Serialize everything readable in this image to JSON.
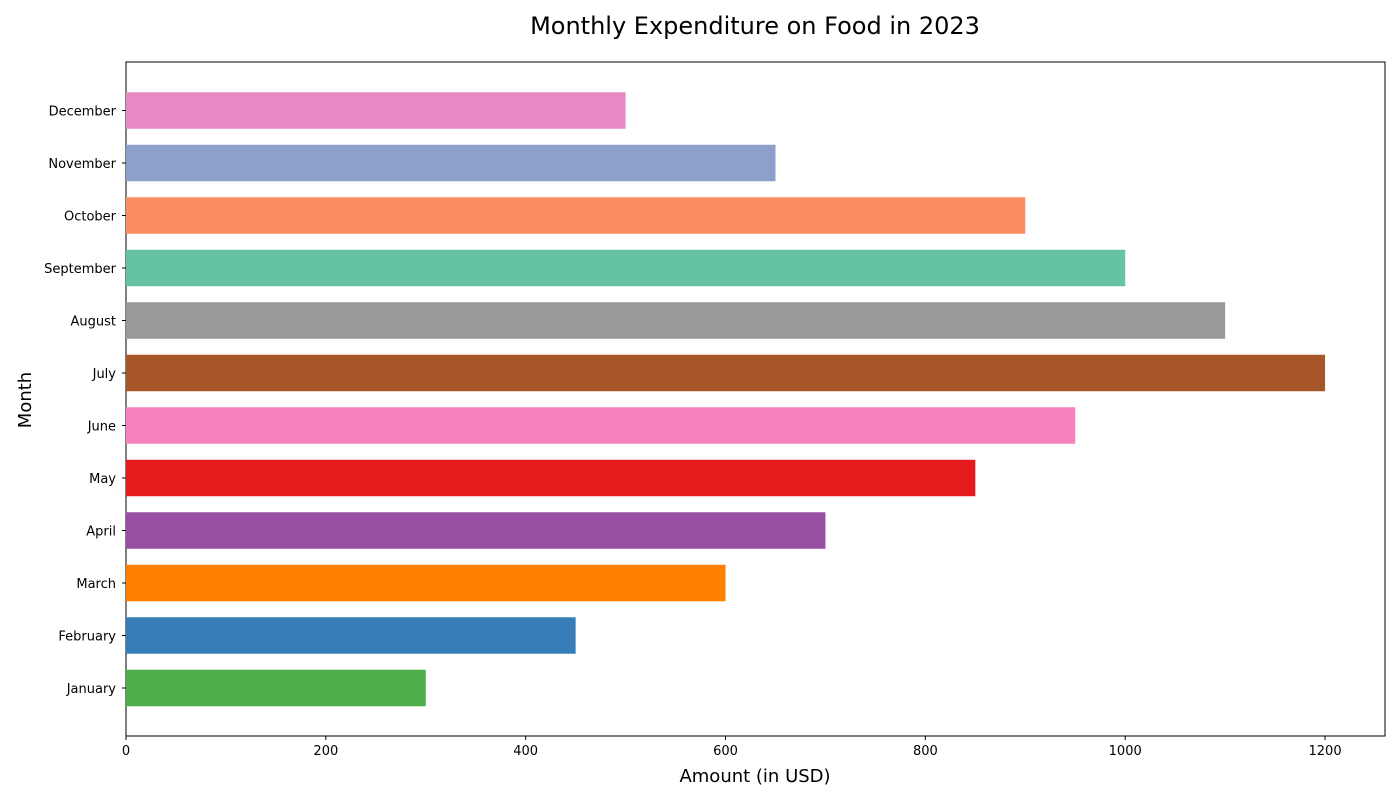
{
  "chart_data": {
    "type": "bar",
    "orientation": "horizontal",
    "title": "Monthly Expenditure on Food in 2023",
    "xlabel": "Amount (in USD)",
    "ylabel": "Month",
    "categories": [
      "January",
      "February",
      "March",
      "April",
      "May",
      "June",
      "July",
      "August",
      "September",
      "October",
      "November",
      "December"
    ],
    "values": [
      300,
      450,
      600,
      700,
      850,
      950,
      1200,
      1100,
      1000,
      900,
      650,
      500
    ],
    "colors": [
      "#4daf4a",
      "#377eb8",
      "#ff7f00",
      "#984ea3",
      "#e41a1c",
      "#f781bf",
      "#a65628",
      "#999999",
      "#66c2a5",
      "#fc8d62",
      "#8da0cb",
      "#e78ac3"
    ],
    "xlim": [
      0,
      1260
    ],
    "xticks": [
      0,
      200,
      400,
      600,
      800,
      1000,
      1200
    ],
    "grid": false,
    "legend": "none"
  }
}
